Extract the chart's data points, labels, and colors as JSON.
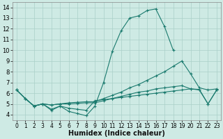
{
  "xlabel": "Humidex (Indice chaleur)",
  "xlim": [
    -0.5,
    23.5
  ],
  "ylim": [
    3.5,
    14.5
  ],
  "xticks": [
    0,
    1,
    2,
    3,
    4,
    5,
    6,
    7,
    8,
    9,
    10,
    11,
    12,
    13,
    14,
    15,
    16,
    17,
    18,
    19,
    20,
    21,
    22,
    23
  ],
  "yticks": [
    4,
    5,
    6,
    7,
    8,
    9,
    10,
    11,
    12,
    13,
    14
  ],
  "bg_color": "#ceeae4",
  "grid_color": "#aacfc8",
  "line_color": "#1a7a6e",
  "line1_x": [
    0,
    1,
    2,
    3,
    4,
    5,
    6,
    7,
    8,
    9,
    10,
    11,
    12,
    13,
    14,
    15,
    16,
    17,
    18
  ],
  "line1_y": [
    6.3,
    5.5,
    4.8,
    5.0,
    4.4,
    4.8,
    4.3,
    4.1,
    3.9,
    4.8,
    7.0,
    9.9,
    11.8,
    13.0,
    13.2,
    13.7,
    13.85,
    12.2,
    10.0
  ],
  "line2_x": [
    0,
    1,
    2,
    3,
    4,
    5,
    6,
    7,
    8,
    9,
    10,
    11,
    12,
    13,
    14,
    15,
    16,
    17,
    18,
    19,
    20,
    21,
    22,
    23
  ],
  "line2_y": [
    6.3,
    5.5,
    4.8,
    5.0,
    4.9,
    5.0,
    5.1,
    5.15,
    5.2,
    5.2,
    5.5,
    5.8,
    6.1,
    6.5,
    6.8,
    7.2,
    7.6,
    8.0,
    8.5,
    9.0,
    7.8,
    6.5,
    6.3,
    6.4
  ],
  "line3_x": [
    0,
    1,
    2,
    3,
    4,
    5,
    6,
    7,
    8,
    9,
    10,
    11,
    12,
    13,
    14,
    15,
    16,
    17,
    18,
    19,
    20,
    21,
    22,
    23
  ],
  "line3_y": [
    6.3,
    5.5,
    4.8,
    5.0,
    4.9,
    5.0,
    5.0,
    5.05,
    5.1,
    5.1,
    5.3,
    5.5,
    5.7,
    5.9,
    6.1,
    6.2,
    6.4,
    6.5,
    6.6,
    6.7,
    6.4,
    6.3,
    5.0,
    6.3
  ],
  "line4_x": [
    0,
    1,
    2,
    3,
    4,
    5,
    6,
    7,
    8,
    9,
    10,
    11,
    12,
    13,
    14,
    15,
    16,
    17,
    18,
    19,
    20,
    21,
    22,
    23
  ],
  "line4_y": [
    6.3,
    5.5,
    4.8,
    5.0,
    4.5,
    4.8,
    4.6,
    4.5,
    4.4,
    5.3,
    5.4,
    5.5,
    5.6,
    5.7,
    5.8,
    5.9,
    6.0,
    6.1,
    6.2,
    6.3,
    6.4,
    6.35,
    5.0,
    6.3
  ]
}
